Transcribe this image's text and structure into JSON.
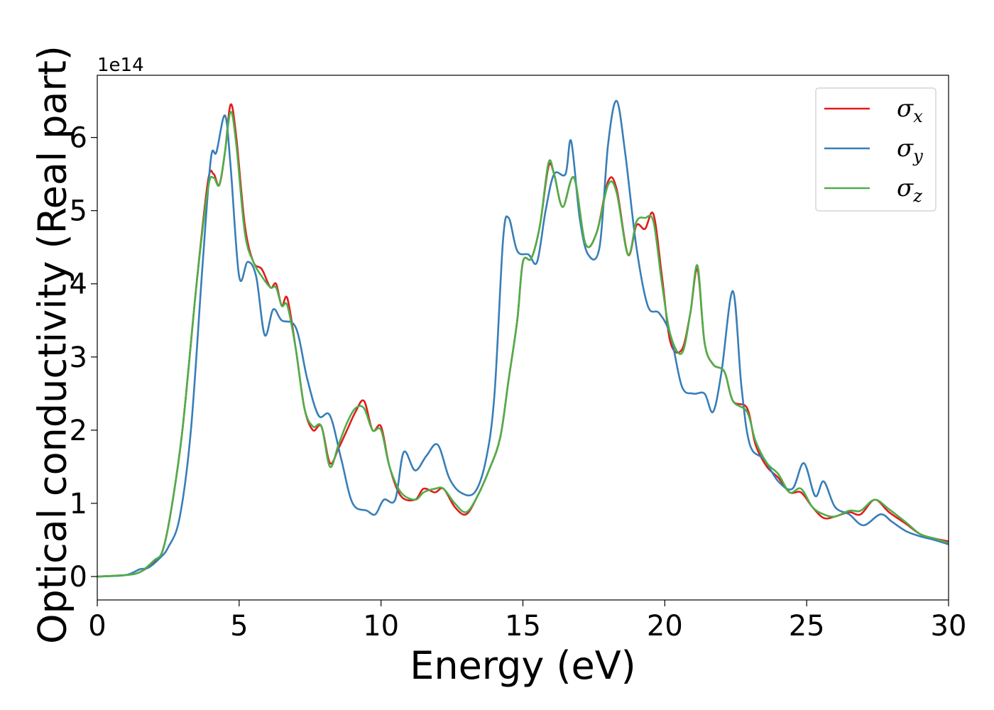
{
  "chart_data": {
    "type": "line",
    "title": "",
    "xlabel": "Energy (eV)",
    "ylabel": "Optical conductivity (Real part)",
    "y_offset_label": "1e14",
    "y_scale": 100000000000000.0,
    "xlim": [
      0,
      30
    ],
    "ylim": [
      -0.32,
      6.85
    ],
    "x_ticks": [
      0,
      5,
      10,
      15,
      20,
      25,
      30
    ],
    "y_ticks": [
      0,
      1,
      2,
      3,
      4,
      5,
      6
    ],
    "grid": false,
    "legend": "top-right",
    "series": [
      {
        "name": "σx",
        "symbol": "σ",
        "subscript": "x",
        "color": "#e41a1c",
        "points": [
          [
            0,
            0
          ],
          [
            1,
            0.02
          ],
          [
            1.5,
            0.06
          ],
          [
            2,
            0.2
          ],
          [
            2.3,
            0.35
          ],
          [
            2.6,
            0.9
          ],
          [
            3,
            2
          ],
          [
            3.5,
            4
          ],
          [
            3.9,
            5.4
          ],
          [
            4.1,
            5.5
          ],
          [
            4.3,
            5.35
          ],
          [
            4.5,
            5.8
          ],
          [
            4.7,
            6.45
          ],
          [
            4.9,
            6
          ],
          [
            5.2,
            4.8
          ],
          [
            5.5,
            4.3
          ],
          [
            5.8,
            4.2
          ],
          [
            6.1,
            3.95
          ],
          [
            6.3,
            4
          ],
          [
            6.5,
            3.7
          ],
          [
            6.7,
            3.8
          ],
          [
            7,
            3.1
          ],
          [
            7.3,
            2.3
          ],
          [
            7.6,
            2.0
          ],
          [
            7.9,
            2.05
          ],
          [
            8.2,
            1.55
          ],
          [
            8.5,
            1.75
          ],
          [
            8.8,
            2.0
          ],
          [
            9.1,
            2.25
          ],
          [
            9.4,
            2.4
          ],
          [
            9.7,
            2.0
          ],
          [
            10.0,
            2.05
          ],
          [
            10.3,
            1.5
          ],
          [
            10.7,
            1.1
          ],
          [
            11.2,
            1.05
          ],
          [
            11.5,
            1.2
          ],
          [
            11.9,
            1.15
          ],
          [
            12.2,
            1.2
          ],
          [
            12.6,
            0.95
          ],
          [
            13.0,
            0.85
          ],
          [
            13.4,
            1.1
          ],
          [
            13.8,
            1.45
          ],
          [
            14.2,
            1.9
          ],
          [
            14.5,
            2.7
          ],
          [
            14.8,
            3.5
          ],
          [
            15.0,
            4.3
          ],
          [
            15.3,
            4.35
          ],
          [
            15.6,
            4.8
          ],
          [
            15.9,
            5.6
          ],
          [
            16.1,
            5.5
          ],
          [
            16.4,
            5.05
          ],
          [
            16.8,
            5.45
          ],
          [
            17.2,
            4.55
          ],
          [
            17.6,
            4.7
          ],
          [
            18.0,
            5.4
          ],
          [
            18.3,
            5.3
          ],
          [
            18.7,
            4.4
          ],
          [
            19.0,
            4.8
          ],
          [
            19.3,
            4.75
          ],
          [
            19.6,
            4.95
          ],
          [
            19.9,
            4.1
          ],
          [
            20.2,
            3.2
          ],
          [
            20.6,
            3.1
          ],
          [
            20.9,
            3.6
          ],
          [
            21.15,
            4.2
          ],
          [
            21.4,
            3.2
          ],
          [
            21.7,
            2.9
          ],
          [
            22.1,
            2.8
          ],
          [
            22.4,
            2.4
          ],
          [
            22.9,
            2.3
          ],
          [
            23.2,
            1.8
          ],
          [
            23.6,
            1.5
          ],
          [
            24.0,
            1.35
          ],
          [
            24.4,
            1.15
          ],
          [
            24.8,
            1.15
          ],
          [
            25.2,
            0.95
          ],
          [
            25.6,
            0.8
          ],
          [
            26.0,
            0.82
          ],
          [
            26.5,
            0.88
          ],
          [
            26.9,
            0.85
          ],
          [
            27.4,
            1.05
          ],
          [
            27.9,
            0.88
          ],
          [
            28.5,
            0.72
          ],
          [
            29.0,
            0.58
          ],
          [
            29.5,
            0.52
          ],
          [
            30,
            0.48
          ]
        ]
      },
      {
        "name": "σy",
        "symbol": "σ",
        "subscript": "y",
        "color": "#377eb8",
        "points": [
          [
            0,
            0
          ],
          [
            1,
            0.02
          ],
          [
            1.5,
            0.1
          ],
          [
            1.8,
            0.12
          ],
          [
            2.2,
            0.25
          ],
          [
            2.5,
            0.4
          ],
          [
            2.9,
            0.8
          ],
          [
            3.3,
            2.0
          ],
          [
            3.7,
            4.2
          ],
          [
            4.0,
            5.7
          ],
          [
            4.2,
            5.8
          ],
          [
            4.5,
            6.3
          ],
          [
            4.7,
            5.6
          ],
          [
            5.0,
            4.1
          ],
          [
            5.3,
            4.3
          ],
          [
            5.6,
            4.1
          ],
          [
            5.9,
            3.3
          ],
          [
            6.2,
            3.65
          ],
          [
            6.5,
            3.5
          ],
          [
            7.0,
            3.4
          ],
          [
            7.4,
            2.7
          ],
          [
            7.8,
            2.2
          ],
          [
            8.2,
            2.2
          ],
          [
            8.6,
            1.6
          ],
          [
            9.0,
            1.0
          ],
          [
            9.5,
            0.9
          ],
          [
            9.8,
            0.85
          ],
          [
            10.1,
            1.05
          ],
          [
            10.5,
            1.05
          ],
          [
            10.8,
            1.7
          ],
          [
            11.2,
            1.45
          ],
          [
            11.6,
            1.65
          ],
          [
            12.0,
            1.8
          ],
          [
            12.4,
            1.35
          ],
          [
            12.8,
            1.15
          ],
          [
            13.3,
            1.15
          ],
          [
            13.7,
            1.6
          ],
          [
            14.0,
            2.5
          ],
          [
            14.3,
            4.6
          ],
          [
            14.5,
            4.9
          ],
          [
            14.8,
            4.45
          ],
          [
            15.2,
            4.4
          ],
          [
            15.5,
            4.3
          ],
          [
            15.8,
            5.0
          ],
          [
            16.1,
            5.5
          ],
          [
            16.5,
            5.5
          ],
          [
            16.7,
            5.95
          ],
          [
            17.0,
            4.9
          ],
          [
            17.3,
            4.4
          ],
          [
            17.7,
            4.5
          ],
          [
            18.0,
            5.9
          ],
          [
            18.3,
            6.5
          ],
          [
            18.6,
            5.8
          ],
          [
            19.0,
            4.5
          ],
          [
            19.4,
            3.7
          ],
          [
            19.8,
            3.6
          ],
          [
            20.2,
            3.3
          ],
          [
            20.6,
            2.6
          ],
          [
            21.0,
            2.5
          ],
          [
            21.4,
            2.5
          ],
          [
            21.7,
            2.25
          ],
          [
            22.0,
            2.8
          ],
          [
            22.4,
            3.9
          ],
          [
            22.7,
            2.6
          ],
          [
            23.0,
            1.8
          ],
          [
            23.5,
            1.6
          ],
          [
            24.0,
            1.3
          ],
          [
            24.5,
            1.2
          ],
          [
            24.9,
            1.55
          ],
          [
            25.3,
            1.1
          ],
          [
            25.6,
            1.3
          ],
          [
            26.0,
            0.95
          ],
          [
            26.5,
            0.85
          ],
          [
            27.0,
            0.7
          ],
          [
            27.6,
            0.85
          ],
          [
            28.0,
            0.75
          ],
          [
            28.5,
            0.62
          ],
          [
            29.0,
            0.55
          ],
          [
            29.5,
            0.5
          ],
          [
            30,
            0.44
          ]
        ]
      },
      {
        "name": "σz",
        "symbol": "σ",
        "subscript": "z",
        "color": "#4daf4a",
        "points": [
          [
            0,
            0
          ],
          [
            1,
            0.02
          ],
          [
            1.5,
            0.06
          ],
          [
            2,
            0.22
          ],
          [
            2.3,
            0.35
          ],
          [
            2.6,
            0.9
          ],
          [
            3,
            2
          ],
          [
            3.5,
            4
          ],
          [
            3.9,
            5.3
          ],
          [
            4.1,
            5.45
          ],
          [
            4.3,
            5.35
          ],
          [
            4.5,
            5.8
          ],
          [
            4.7,
            6.35
          ],
          [
            4.9,
            5.9
          ],
          [
            5.2,
            4.7
          ],
          [
            5.5,
            4.3
          ],
          [
            5.8,
            4.1
          ],
          [
            6.1,
            3.95
          ],
          [
            6.3,
            3.95
          ],
          [
            6.5,
            3.7
          ],
          [
            6.7,
            3.7
          ],
          [
            7,
            3.1
          ],
          [
            7.3,
            2.3
          ],
          [
            7.6,
            2.05
          ],
          [
            7.9,
            2.05
          ],
          [
            8.2,
            1.5
          ],
          [
            8.5,
            1.8
          ],
          [
            8.8,
            2.1
          ],
          [
            9.1,
            2.3
          ],
          [
            9.4,
            2.3
          ],
          [
            9.7,
            2.0
          ],
          [
            10.0,
            2.0
          ],
          [
            10.3,
            1.5
          ],
          [
            10.7,
            1.15
          ],
          [
            11.2,
            1.05
          ],
          [
            11.5,
            1.15
          ],
          [
            11.9,
            1.2
          ],
          [
            12.2,
            1.2
          ],
          [
            12.6,
            1.0
          ],
          [
            13.0,
            0.88
          ],
          [
            13.4,
            1.1
          ],
          [
            13.8,
            1.45
          ],
          [
            14.2,
            1.9
          ],
          [
            14.5,
            2.7
          ],
          [
            14.8,
            3.5
          ],
          [
            15.0,
            4.3
          ],
          [
            15.3,
            4.35
          ],
          [
            15.6,
            4.8
          ],
          [
            15.9,
            5.65
          ],
          [
            16.1,
            5.5
          ],
          [
            16.4,
            5.05
          ],
          [
            16.8,
            5.45
          ],
          [
            17.2,
            4.55
          ],
          [
            17.6,
            4.7
          ],
          [
            18.0,
            5.35
          ],
          [
            18.3,
            5.25
          ],
          [
            18.7,
            4.4
          ],
          [
            19.0,
            4.85
          ],
          [
            19.3,
            4.9
          ],
          [
            19.6,
            4.85
          ],
          [
            19.9,
            4.0
          ],
          [
            20.2,
            3.3
          ],
          [
            20.6,
            3.05
          ],
          [
            20.9,
            3.6
          ],
          [
            21.15,
            4.25
          ],
          [
            21.4,
            3.2
          ],
          [
            21.7,
            2.9
          ],
          [
            22.1,
            2.8
          ],
          [
            22.4,
            2.4
          ],
          [
            22.9,
            2.25
          ],
          [
            23.2,
            1.85
          ],
          [
            23.6,
            1.55
          ],
          [
            24.0,
            1.4
          ],
          [
            24.4,
            1.15
          ],
          [
            24.8,
            1.2
          ],
          [
            25.2,
            0.95
          ],
          [
            25.6,
            0.85
          ],
          [
            26.0,
            0.82
          ],
          [
            26.5,
            0.9
          ],
          [
            26.9,
            0.9
          ],
          [
            27.4,
            1.05
          ],
          [
            27.9,
            0.92
          ],
          [
            28.5,
            0.74
          ],
          [
            29.0,
            0.58
          ],
          [
            29.5,
            0.52
          ],
          [
            30,
            0.46
          ]
        ]
      }
    ]
  }
}
